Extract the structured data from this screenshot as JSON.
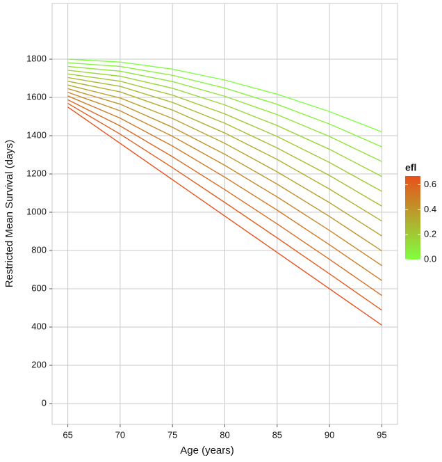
{
  "chart_data": {
    "type": "line",
    "xlabel": "Age (years)",
    "ylabel": "Restricted Mean Survival (days)",
    "x": [
      65,
      70,
      75,
      80,
      85,
      90,
      95
    ],
    "series": [
      {
        "color": "#80ff40",
        "values": [
          1800,
          1785,
          1748,
          1691,
          1617,
          1526,
          1420
        ]
      },
      {
        "color": "#88f23d",
        "values": [
          1781,
          1762,
          1716,
          1649,
          1564,
          1461,
          1342
        ]
      },
      {
        "color": "#90e43a",
        "values": [
          1762,
          1737,
          1683,
          1606,
          1510,
          1396,
          1265
        ]
      },
      {
        "color": "#98d737",
        "values": [
          1742,
          1711,
          1648,
          1561,
          1453,
          1329,
          1187
        ]
      },
      {
        "color": "#a0c934",
        "values": [
          1723,
          1685,
          1612,
          1514,
          1396,
          1260,
          1109
        ]
      },
      {
        "color": "#a8bc31",
        "values": [
          1704,
          1658,
          1574,
          1465,
          1336,
          1192,
          1032
        ]
      },
      {
        "color": "#b0ae2e",
        "values": [
          1685,
          1629,
          1534,
          1414,
          1276,
          1121,
          954
        ]
      },
      {
        "color": "#b8a12c",
        "values": [
          1665,
          1597,
          1490,
          1360,
          1211,
          1050,
          876
        ]
      },
      {
        "color": "#c09329",
        "values": [
          1646,
          1565,
          1444,
          1303,
          1147,
          978,
          798
        ]
      },
      {
        "color": "#c88626",
        "values": [
          1627,
          1530,
          1397,
          1245,
          1080,
          905,
          721
        ]
      },
      {
        "color": "#d07823",
        "values": [
          1608,
          1492,
          1346,
          1183,
          1011,
          830,
          643
        ]
      },
      {
        "color": "#d86b20",
        "values": [
          1588,
          1451,
          1290,
          1118,
          939,
          754,
          565
        ]
      },
      {
        "color": "#e05e1d",
        "values": [
          1569,
          1408,
          1233,
          1051,
          866,
          678,
          488
        ]
      },
      {
        "color": "#e8501a",
        "values": [
          1550,
          1360,
          1170,
          980,
          790,
          600,
          410
        ]
      }
    ],
    "xlim": [
      63.5,
      96.5
    ],
    "xticks": [
      65,
      70,
      75,
      80,
      85,
      90,
      95
    ],
    "ylim": [
      -109,
      2091
    ],
    "yticks": [
      0,
      200,
      400,
      600,
      800,
      1000,
      1200,
      1400,
      1600,
      1800
    ],
    "grid": true,
    "colorbar": {
      "title": "efl",
      "lim": [
        0,
        0.67
      ],
      "low": "#80ff40",
      "high": "#e8501a",
      "ticks": [
        {
          "value": 0,
          "label": "0.0"
        },
        0.2,
        0.4,
        0.6
      ]
    }
  }
}
